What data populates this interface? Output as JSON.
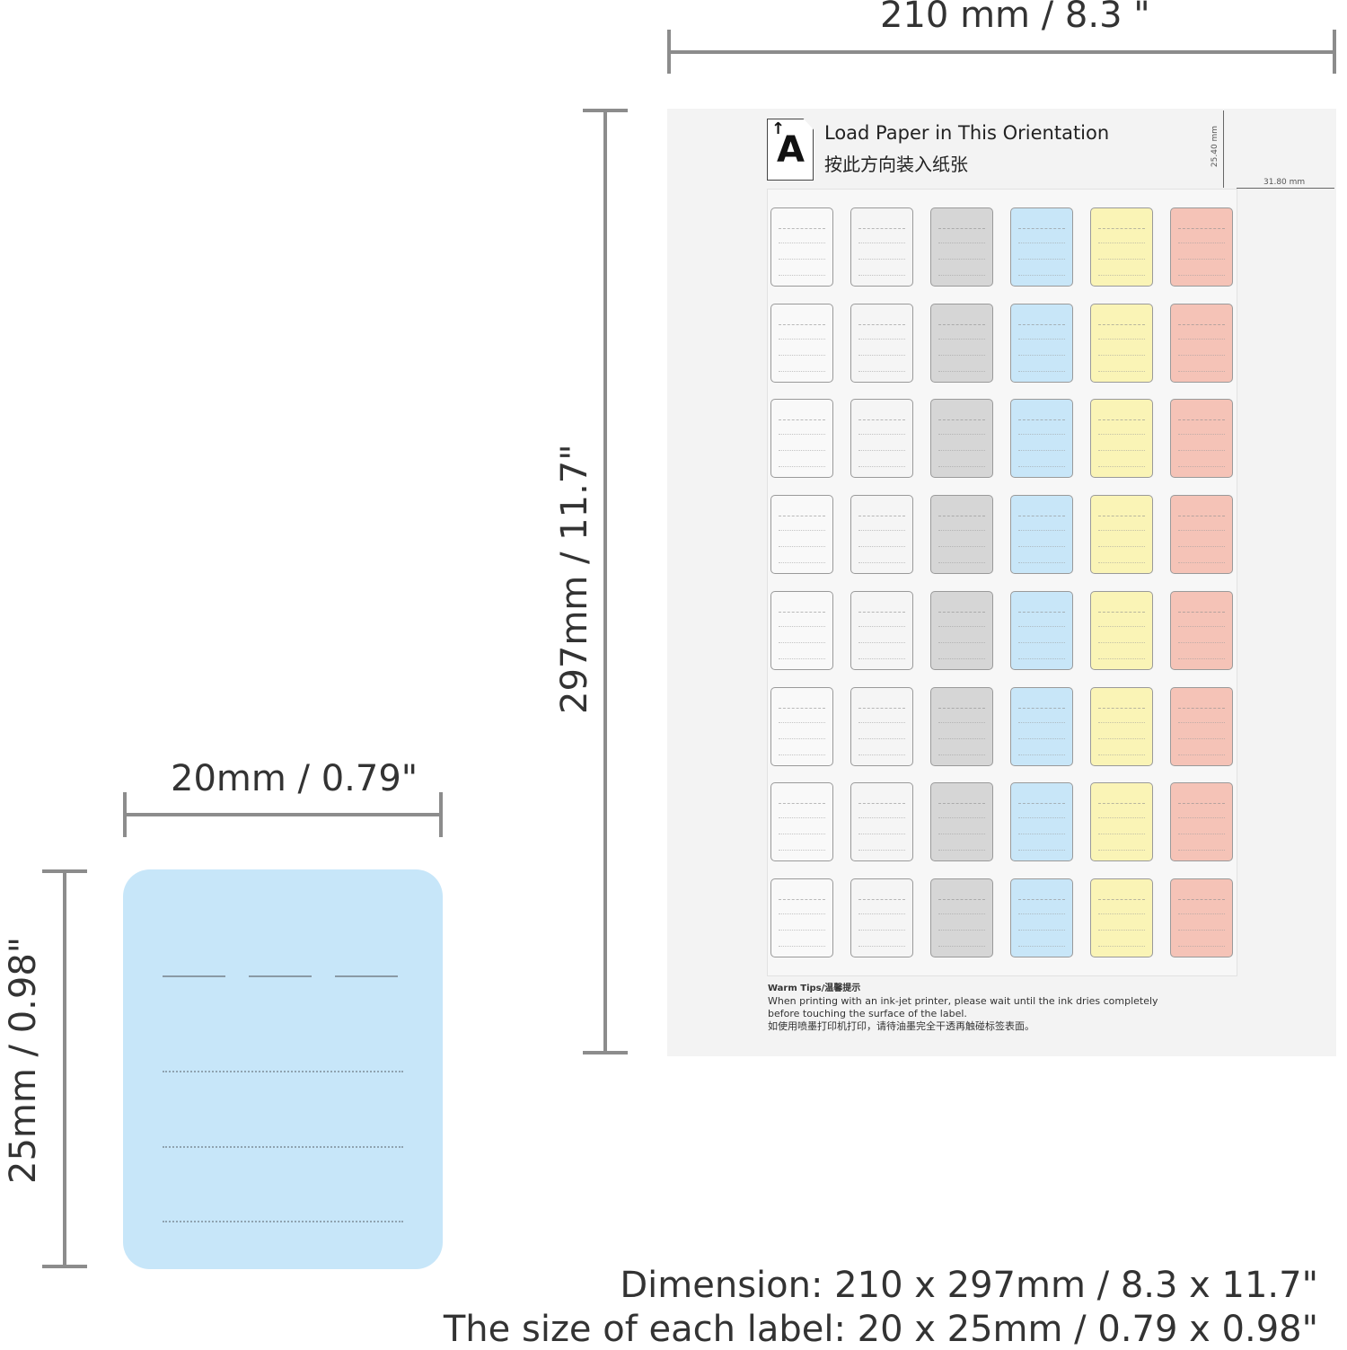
{
  "dimensions": {
    "sheet_width": "210 mm / 8.3 \"",
    "sheet_height": "297mm / 11.7\"",
    "label_width": "20mm / 0.79\"",
    "label_height": "25mm / 0.98\""
  },
  "sheet": {
    "load_letter": "A",
    "load_text_en": "Load Paper in This Orientation",
    "load_text_zh": "按此方向装入纸张",
    "margin_top": "25.40 mm",
    "margin_side": "31.80 mm",
    "label_rows": 8,
    "label_colors": [
      "#f9f9f9",
      "#f5f5f5",
      "#d6d6d6",
      "#c8e6f8",
      "#faf4b6",
      "#f5c3b7"
    ]
  },
  "tips": {
    "title": "Warm Tips/温馨提示",
    "line1": "When printing with an ink-jet printer, please wait until the ink dries completely",
    "line2": "before touching the surface of the label.",
    "line3": "如使用喷墨打印机打印，请待油墨完全干透再触碰标签表面。"
  },
  "footer": {
    "dimension": "Dimension: 210 x 297mm / 8.3 x 11.7\"",
    "label_size": "The size of each label: 20 x 25mm / 0.79 x 0.98\""
  }
}
